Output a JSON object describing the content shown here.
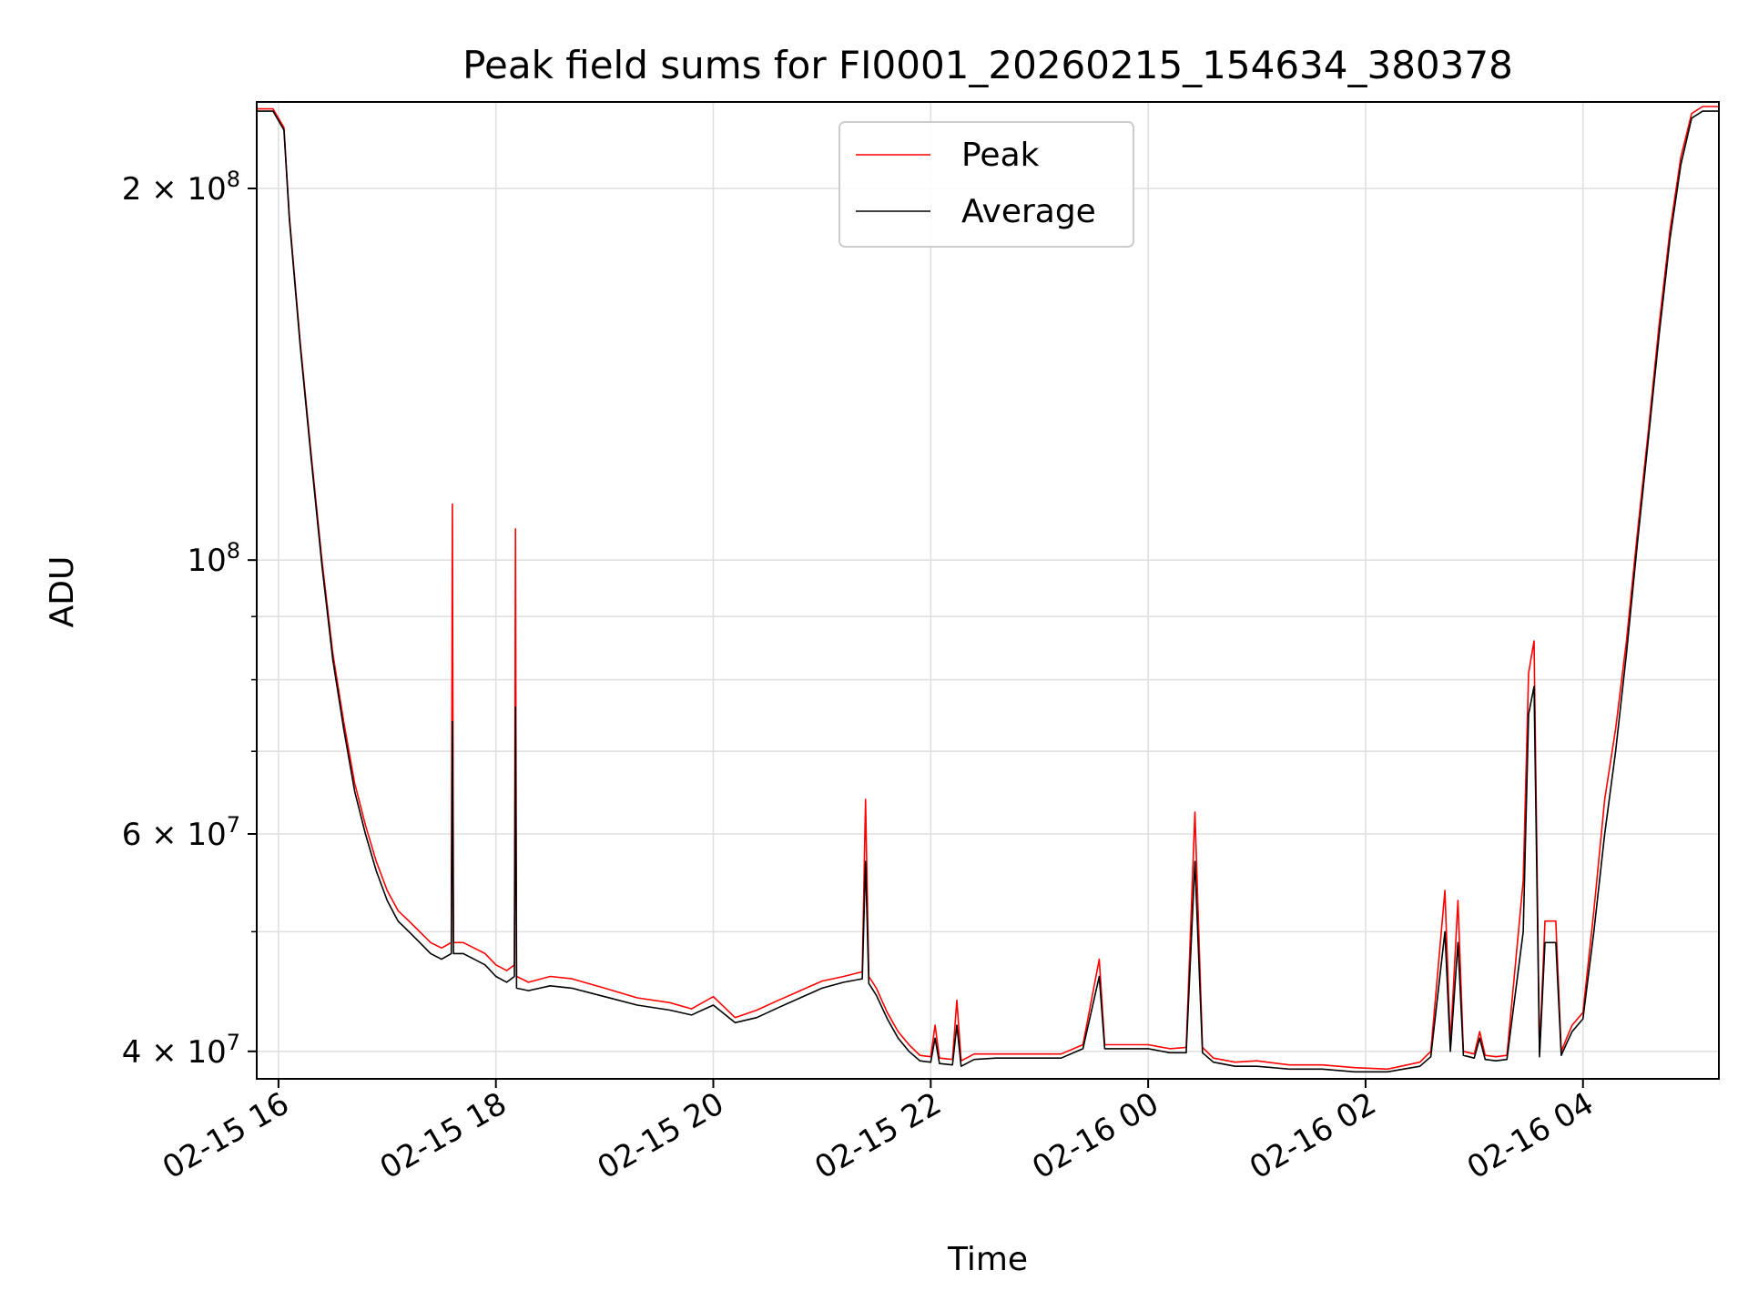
{
  "chart_data": {
    "type": "line",
    "title": "Peak field sums for FI0001_20260215_154634_380378",
    "xlabel": "Time",
    "ylabel": "ADU",
    "yscale": "log",
    "ylim": [
      38000000,
      235000000
    ],
    "xlim": [
      15.8,
      29.25
    ],
    "grid": true,
    "legend_position": "upper center",
    "x_ticks": [
      {
        "value": 16,
        "label": "02-15 16"
      },
      {
        "value": 18,
        "label": "02-15 18"
      },
      {
        "value": 20,
        "label": "02-15 20"
      },
      {
        "value": 22,
        "label": "02-15 22"
      },
      {
        "value": 24,
        "label": "02-16 00"
      },
      {
        "value": 26,
        "label": "02-16 02"
      },
      {
        "value": 28,
        "label": "02-16 04"
      }
    ],
    "y_ticks": [
      {
        "value": 40000000,
        "mantissa": "4",
        "exp": "7"
      },
      {
        "value": 60000000,
        "mantissa": "6",
        "exp": "7"
      },
      {
        "value": 100000000,
        "mantissa": "",
        "exp": "8"
      },
      {
        "value": 200000000,
        "mantissa": "2",
        "exp": "8"
      }
    ],
    "y_minor_ticks": [
      50000000,
      70000000,
      80000000,
      90000000
    ],
    "series": [
      {
        "name": "Peak",
        "color": "#ff0000",
        "x": [
          15.8,
          15.95,
          16.05,
          16.1,
          16.2,
          16.3,
          16.4,
          16.5,
          16.6,
          16.7,
          16.8,
          16.9,
          17.0,
          17.1,
          17.2,
          17.3,
          17.4,
          17.5,
          17.59,
          17.6,
          17.61,
          17.7,
          17.8,
          17.9,
          18.0,
          18.1,
          18.17,
          18.18,
          18.19,
          18.3,
          18.5,
          18.7,
          19.0,
          19.3,
          19.6,
          19.8,
          20.0,
          20.2,
          20.4,
          20.6,
          20.8,
          21.0,
          21.2,
          21.37,
          21.4,
          21.43,
          21.5,
          21.6,
          21.7,
          21.8,
          21.9,
          22.0,
          22.04,
          22.08,
          22.2,
          22.24,
          22.28,
          22.4,
          22.6,
          22.8,
          23.0,
          23.2,
          23.4,
          23.55,
          23.6,
          23.8,
          24.0,
          24.2,
          24.35,
          24.43,
          24.5,
          24.6,
          24.8,
          25.0,
          25.3,
          25.6,
          25.9,
          26.2,
          26.5,
          26.6,
          26.73,
          26.78,
          26.85,
          26.9,
          27.0,
          27.05,
          27.1,
          27.2,
          27.3,
          27.45,
          27.5,
          27.55,
          27.6,
          27.65,
          27.75,
          27.8,
          27.85,
          27.9,
          28.0,
          28.1,
          28.2,
          28.3,
          28.4,
          28.5,
          28.6,
          28.7,
          28.8,
          28.9,
          29.0,
          29.1,
          29.2,
          29.25
        ],
        "values": [
          232000000,
          232000000,
          224000000,
          190000000,
          150000000,
          122000000,
          100000000,
          84000000,
          74000000,
          66000000,
          61000000,
          57000000,
          54000000,
          52000000,
          51000000,
          50000000,
          49000000,
          48500000,
          49000000,
          111000000,
          49000000,
          49000000,
          48500000,
          48000000,
          47000000,
          46500000,
          47000000,
          106000000,
          46000000,
          45500000,
          46000000,
          45800000,
          45000000,
          44200000,
          43800000,
          43300000,
          44300000,
          42600000,
          43200000,
          44000000,
          44800000,
          45600000,
          46000000,
          46400000,
          64000000,
          46000000,
          45000000,
          43000000,
          41500000,
          40500000,
          39700000,
          39600000,
          42000000,
          39500000,
          39400000,
          44000000,
          39300000,
          39800000,
          39800000,
          39800000,
          39800000,
          39800000,
          40500000,
          47500000,
          40500000,
          40500000,
          40500000,
          40200000,
          40300000,
          62500000,
          40300000,
          39500000,
          39200000,
          39300000,
          39000000,
          39000000,
          38800000,
          38700000,
          39200000,
          40000000,
          54000000,
          40500000,
          53000000,
          40000000,
          39800000,
          41500000,
          39700000,
          39600000,
          39700000,
          55000000,
          81000000,
          86000000,
          39900000,
          51000000,
          51000000,
          40000000,
          41000000,
          42000000,
          43000000,
          52000000,
          64000000,
          73000000,
          86000000,
          105000000,
          127000000,
          155000000,
          185000000,
          212000000,
          230000000,
          233000000,
          233000000,
          233000000
        ]
      },
      {
        "name": "Average",
        "color": "#000000",
        "x": [
          15.8,
          15.95,
          16.05,
          16.1,
          16.2,
          16.3,
          16.4,
          16.5,
          16.6,
          16.7,
          16.8,
          16.9,
          17.0,
          17.1,
          17.2,
          17.3,
          17.4,
          17.5,
          17.59,
          17.6,
          17.61,
          17.7,
          17.8,
          17.9,
          18.0,
          18.1,
          18.17,
          18.18,
          18.19,
          18.3,
          18.5,
          18.7,
          19.0,
          19.3,
          19.6,
          19.8,
          20.0,
          20.2,
          20.4,
          20.6,
          20.8,
          21.0,
          21.2,
          21.37,
          21.4,
          21.43,
          21.5,
          21.6,
          21.7,
          21.8,
          21.9,
          22.0,
          22.04,
          22.08,
          22.2,
          22.24,
          22.28,
          22.4,
          22.6,
          22.8,
          23.0,
          23.2,
          23.4,
          23.55,
          23.6,
          23.8,
          24.0,
          24.2,
          24.35,
          24.43,
          24.5,
          24.6,
          24.8,
          25.0,
          25.3,
          25.6,
          25.9,
          26.2,
          26.5,
          26.6,
          26.73,
          26.78,
          26.85,
          26.9,
          27.0,
          27.05,
          27.1,
          27.2,
          27.3,
          27.45,
          27.5,
          27.55,
          27.6,
          27.65,
          27.75,
          27.8,
          27.85,
          27.9,
          28.0,
          28.1,
          28.2,
          28.3,
          28.4,
          28.5,
          28.6,
          28.7,
          28.8,
          28.9,
          29.0,
          29.1,
          29.2,
          29.25
        ],
        "values": [
          231000000,
          231000000,
          223000000,
          189000000,
          149000000,
          121000000,
          99000000,
          83000000,
          73000000,
          65000000,
          60000000,
          56000000,
          53000000,
          51000000,
          50000000,
          49000000,
          48000000,
          47500000,
          48000000,
          74000000,
          48000000,
          48000000,
          47500000,
          47000000,
          46000000,
          45500000,
          46000000,
          76000000,
          45000000,
          44800000,
          45200000,
          45000000,
          44300000,
          43600000,
          43200000,
          42800000,
          43600000,
          42200000,
          42600000,
          43400000,
          44200000,
          45000000,
          45500000,
          45800000,
          57000000,
          45400000,
          44400000,
          42500000,
          41000000,
          40000000,
          39300000,
          39200000,
          41000000,
          39100000,
          39000000,
          42000000,
          38900000,
          39400000,
          39500000,
          39500000,
          39500000,
          39500000,
          40200000,
          46000000,
          40200000,
          40200000,
          40200000,
          39900000,
          39900000,
          57000000,
          39900000,
          39200000,
          38900000,
          38900000,
          38700000,
          38700000,
          38500000,
          38500000,
          38900000,
          39600000,
          50000000,
          40000000,
          49000000,
          39700000,
          39500000,
          41000000,
          39400000,
          39300000,
          39400000,
          50000000,
          75000000,
          79000000,
          39600000,
          49000000,
          49000000,
          39700000,
          40600000,
          41500000,
          42500000,
          50000000,
          60000000,
          70000000,
          84000000,
          103000000,
          125000000,
          152000000,
          182000000,
          209000000,
          228000000,
          231000000,
          231000000,
          231000000
        ]
      }
    ]
  }
}
